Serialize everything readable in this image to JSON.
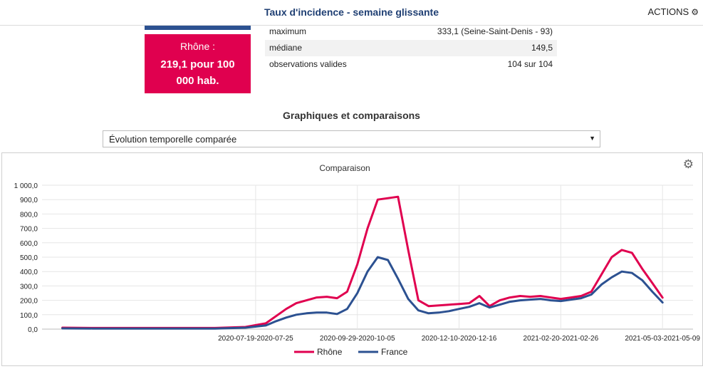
{
  "header": {
    "title": "Taux d'incidence - semaine glissante",
    "actions_label": "ACTIONS",
    "actions_icon": "gear-icon"
  },
  "rhone_card": {
    "line1": "Rhône :",
    "line2": "219,1 pour 100",
    "line3": "000 hab.",
    "color": "#e0004f"
  },
  "stats": [
    {
      "label": "maximum",
      "value": "333,1 (Seine-Saint-Denis - 93)"
    },
    {
      "label": "médiane",
      "value": "149,5"
    },
    {
      "label": "observations valides",
      "value": "104 sur 104"
    }
  ],
  "section_title": "Graphiques et comparaisons",
  "select": {
    "value": "Évolution temporelle comparée"
  },
  "chart_data": {
    "type": "line",
    "title": "Comparaison",
    "ylim": [
      0,
      1000
    ],
    "y_ticks": [
      "0,0",
      "100,0",
      "200,0",
      "300,0",
      "400,0",
      "500,0",
      "600,0",
      "700,0",
      "800,0",
      "900,0",
      "1 000,0"
    ],
    "x_tick_labels": [
      "2020-07-19-2020-07-25",
      "2020-09-29-2020-10-05",
      "2020-12-10-2020-12-16",
      "2021-02-20-2021-02-26",
      "2021-05-03-2021-05-09"
    ],
    "x_tick_week_index": [
      19,
      29,
      39,
      49,
      59
    ],
    "grid": true,
    "legend_position": "bottom",
    "series": [
      {
        "name": "Rhône",
        "color": "#e0004f",
        "x": [
          0,
          3,
          6,
          9,
          12,
          15,
          18,
          20,
          21,
          22,
          23,
          24,
          25,
          26,
          27,
          28,
          29,
          30,
          31,
          32,
          33,
          34,
          35,
          36,
          37,
          38,
          39,
          40,
          41,
          42,
          43,
          44,
          45,
          46,
          47,
          48,
          49,
          50,
          51,
          52,
          53,
          54,
          55,
          56,
          57,
          58,
          59
        ],
        "y": [
          10,
          8,
          8,
          8,
          8,
          8,
          15,
          40,
          90,
          140,
          180,
          200,
          220,
          225,
          215,
          260,
          450,
          700,
          900,
          910,
          920,
          550,
          200,
          160,
          165,
          170,
          175,
          180,
          230,
          160,
          200,
          220,
          230,
          225,
          230,
          220,
          210,
          220,
          230,
          260,
          380,
          500,
          550,
          530,
          420,
          320,
          219
        ]
      },
      {
        "name": "France",
        "color": "#2c5191",
        "x": [
          0,
          3,
          6,
          9,
          12,
          15,
          18,
          20,
          21,
          22,
          23,
          24,
          25,
          26,
          27,
          28,
          29,
          30,
          31,
          32,
          33,
          34,
          35,
          36,
          37,
          38,
          39,
          40,
          41,
          42,
          43,
          44,
          45,
          46,
          47,
          48,
          49,
          50,
          51,
          52,
          53,
          54,
          55,
          56,
          57,
          58,
          59
        ],
        "y": [
          5,
          4,
          4,
          4,
          4,
          4,
          10,
          25,
          55,
          80,
          100,
          110,
          115,
          115,
          105,
          140,
          250,
          400,
          500,
          480,
          350,
          210,
          130,
          110,
          115,
          125,
          140,
          155,
          180,
          150,
          170,
          190,
          200,
          205,
          210,
          200,
          195,
          205,
          215,
          240,
          310,
          360,
          400,
          390,
          340,
          260,
          185
        ]
      }
    ]
  }
}
